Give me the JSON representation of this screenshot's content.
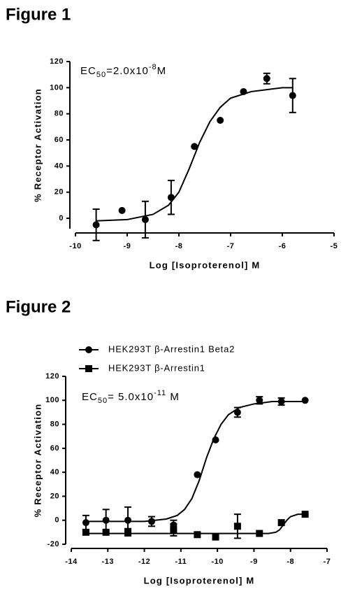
{
  "chart_data": [
    {
      "type": "scatter",
      "title": "Figure 1",
      "x_label": "Log [Isoproterenol] M",
      "y_label": "% Receptor Activation",
      "annotation": [
        {
          "text": "EC",
          "shift": "none"
        },
        {
          "text": "50",
          "shift": "sub"
        },
        {
          "text": "=2.0x10",
          "shift": "none"
        },
        {
          "text": "-8",
          "shift": "super"
        },
        {
          "text": "M",
          "shift": "none"
        }
      ],
      "xlim": [
        -10,
        -5
      ],
      "xticks": [
        -10,
        -9,
        -8,
        -7,
        -6,
        -5
      ],
      "ylim": [
        -8,
        120
      ],
      "yticks": [
        0,
        20,
        40,
        60,
        80,
        100,
        120
      ],
      "series": [
        {
          "marker": "circle",
          "color": "#000000",
          "x": [
            -9.6,
            -9.1,
            -8.65,
            -8.15,
            -7.7,
            -7.2,
            -6.75,
            -6.3,
            -5.8
          ],
          "values": [
            -5,
            6,
            -1,
            16,
            55,
            75,
            97,
            107,
            94
          ],
          "errors": [
            12,
            null,
            14,
            13,
            null,
            null,
            null,
            4,
            13
          ],
          "curve": {
            "x": [
              -9.6,
              -9.0,
              -8.5,
              -8.2,
              -8.0,
              -7.8,
              -7.6,
              -7.4,
              -7.2,
              -7.0,
              -6.6,
              -6.0,
              -5.8
            ],
            "y": [
              -2,
              -1,
              3,
              10,
              20,
              38,
              58,
              74,
              85,
              92,
              97,
              100,
              100
            ]
          }
        }
      ]
    },
    {
      "type": "scatter",
      "title": "Figure 2",
      "x_label": "Log [Isoproterenol] M",
      "y_label": "% Receptor Activation",
      "annotation": [
        {
          "text": "EC",
          "shift": "none"
        },
        {
          "text": "50",
          "shift": "sub"
        },
        {
          "text": "= 5.0x10",
          "shift": "none"
        },
        {
          "text": "-11",
          "shift": "super"
        },
        {
          "text": " M",
          "shift": "none"
        }
      ],
      "xlim": [
        -14,
        -7
      ],
      "xticks": [
        -14,
        -13,
        -12,
        -11,
        -10,
        -9,
        -8,
        -7
      ],
      "ylim": [
        -20,
        120
      ],
      "yticks": [
        -20,
        0,
        20,
        40,
        60,
        80,
        100,
        120
      ],
      "series": [
        {
          "name": "HEK293T β-Arrestin1 Beta2",
          "marker": "circle",
          "color": "#000000",
          "x": [
            -13.6,
            -13.05,
            -12.45,
            -11.8,
            -11.2,
            -10.55,
            -10.05,
            -9.45,
            -8.85,
            -8.25,
            -7.6
          ],
          "values": [
            -2,
            0,
            0,
            -1,
            -4,
            38,
            67,
            90,
            100,
            99,
            100
          ],
          "errors": [
            6,
            9,
            11,
            4,
            4,
            null,
            null,
            4,
            3,
            3,
            null
          ],
          "curve": {
            "x": [
              -13.6,
              -12,
              -11.4,
              -11.1,
              -10.9,
              -10.7,
              -10.5,
              -10.3,
              -10.1,
              -9.9,
              -9.7,
              -9.4,
              -9.0,
              -8.5,
              -7.6
            ],
            "y": [
              -1,
              -1,
              1,
              4,
              9,
              18,
              33,
              52,
              68,
              80,
              88,
              94,
              97,
              99,
              99
            ]
          }
        },
        {
          "name": "HEK293T β-Arrestin1",
          "marker": "square",
          "color": "#000000",
          "x": [
            -13.6,
            -13.05,
            -12.45,
            -11.2,
            -10.55,
            -10.05,
            -9.45,
            -8.85,
            -8.25,
            -7.6
          ],
          "values": [
            -10,
            -10,
            -10,
            -8,
            -12,
            -14,
            -5,
            -11,
            -2,
            5
          ],
          "errors": [
            2,
            null,
            3,
            5,
            null,
            2,
            10,
            null,
            null,
            null
          ],
          "curve": {
            "x": [
              -13.6,
              -9.0,
              -8.6,
              -8.4,
              -8.3,
              -8.2,
              -8.1,
              -8.0,
              -7.8,
              -7.6
            ],
            "y": [
              -11,
              -11,
              -11,
              -10,
              -8,
              -4,
              0,
              3,
              5,
              5
            ]
          }
        }
      ]
    }
  ]
}
